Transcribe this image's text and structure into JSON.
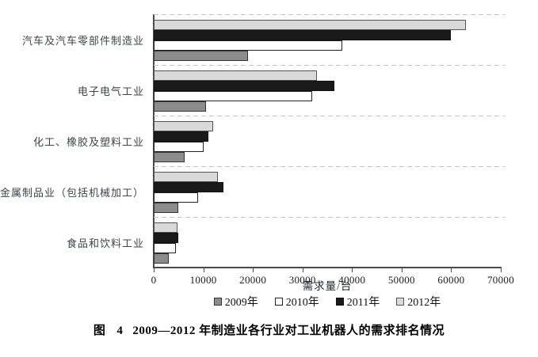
{
  "figure": {
    "caption": {
      "label": "图",
      "number": "4",
      "text": "2009—2012 年制造业各行业对工业机器人的需求排名情况"
    }
  },
  "chart_data": {
    "type": "bar",
    "orientation": "horizontal",
    "title": "",
    "xlabel": "需求量/台",
    "ylabel": "",
    "xlim": [
      0,
      70000
    ],
    "xticks": [
      "0",
      "10000",
      "20000",
      "30000",
      "40000",
      "50000",
      "60000",
      "70000"
    ],
    "grid": "dashed horizontal separators between category groups",
    "legend_position": "bottom",
    "categories": [
      "汽车及汽车零部件制造业",
      "电子电气工业",
      "化工、橡胶及塑料工业",
      "金属制品业（包括机械加工）",
      "食品和饮料工业"
    ],
    "series": [
      {
        "name": "2009年",
        "color": "#8c8c8c",
        "border": "#333333",
        "values": [
          19000,
          10500,
          6300,
          5000,
          3000
        ]
      },
      {
        "name": "2010年",
        "color": "#ffffff",
        "border": "#222222",
        "values": [
          38000,
          32000,
          10000,
          9000,
          4500
        ]
      },
      {
        "name": "2011年",
        "color": "#1a1a1a",
        "border": "#111111",
        "values": [
          60000,
          36500,
          11000,
          14000,
          5000
        ]
      },
      {
        "name": "2012年",
        "color": "#d9d9d9",
        "border": "#555555",
        "values": [
          63000,
          33000,
          12000,
          13000,
          4800
        ]
      }
    ],
    "bar_display_order_top_to_bottom": [
      "2012年",
      "2011年",
      "2010年",
      "2009年"
    ]
  }
}
